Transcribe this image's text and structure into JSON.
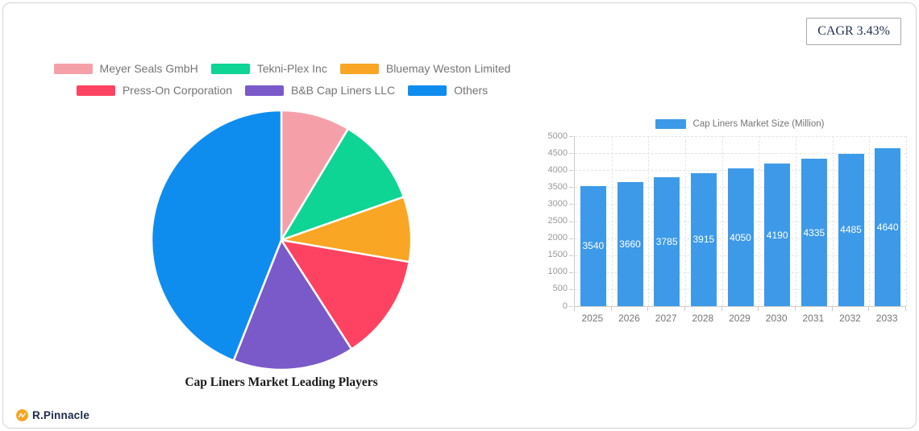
{
  "cagr_badge": "CAGR 3.43%",
  "brand": {
    "name": "R.Pinnacle",
    "logo_color": "#F5A623",
    "text_color": "#1B2A49"
  },
  "chart_data": [
    {
      "type": "pie",
      "title": "Cap Liners Market Leading Players",
      "labels": [
        "Meyer Seals GmbH",
        "Tekni-Plex Inc",
        "Bluemay Weston Limited",
        "Press-On Corporation",
        "B&B Cap Liners LLC",
        "Others"
      ],
      "values": [
        8.6,
        11.0,
        8.1,
        13.2,
        15.1,
        44.0
      ],
      "colors": [
        "#F5A0A8",
        "#0ED494",
        "#F8A623",
        "#FD4361",
        "#7A59C9",
        "#0E8DEF"
      ],
      "start_angle": "top",
      "direction": "clockwise",
      "legend_position": "top",
      "legend_rows": [
        3,
        3
      ],
      "slice_gap_color": "#FFFFFF"
    },
    {
      "type": "bar",
      "legend": "Cap Liners Market Size (Million)",
      "legend_position": "top",
      "categories": [
        "2025",
        "2026",
        "2027",
        "2028",
        "2029",
        "2030",
        "2031",
        "2032",
        "2033"
      ],
      "values": [
        3540,
        3660,
        3785,
        3915,
        4050,
        4190,
        4335,
        4485,
        4640
      ],
      "bar_color": "#3D9AE8",
      "value_label_color": "#FFFFFF",
      "ylim": [
        0,
        5000
      ],
      "ytick_step": 500,
      "grid": true
    }
  ]
}
